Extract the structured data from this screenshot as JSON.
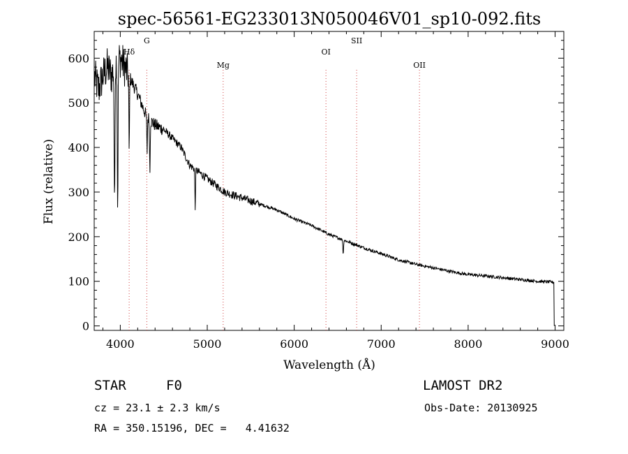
{
  "chart_data": {
    "type": "line",
    "title": "spec-56561-EG233013N050046V01_sp10-092.fits",
    "xlabel": "Wavelength (Å)",
    "ylabel": "Flux (relative)",
    "xlim": [
      3700,
      9100
    ],
    "ylim": [
      -10,
      660
    ],
    "xticks": [
      4000,
      5000,
      6000,
      7000,
      8000,
      9000
    ],
    "yticks": [
      0,
      100,
      200,
      300,
      400,
      500,
      600
    ],
    "line_markers": [
      {
        "label": "Hδ",
        "x": 4102
      },
      {
        "label": "G",
        "x": 4305
      },
      {
        "label": "Mg",
        "x": 5183
      },
      {
        "label": "OI",
        "x": 6365
      },
      {
        "label": "SII",
        "x": 6718
      },
      {
        "label": "OII",
        "x": 7440
      }
    ],
    "spectrum_anchors": [
      [
        3700,
        560
      ],
      [
        3750,
        530
      ],
      [
        3800,
        560
      ],
      [
        3850,
        580
      ],
      [
        3900,
        560
      ],
      [
        3950,
        590
      ],
      [
        4000,
        600
      ],
      [
        4050,
        580
      ],
      [
        4100,
        560
      ],
      [
        4150,
        540
      ],
      [
        4200,
        520
      ],
      [
        4300,
        470
      ],
      [
        4400,
        450
      ],
      [
        4500,
        440
      ],
      [
        4600,
        420
      ],
      [
        4700,
        400
      ],
      [
        4800,
        360
      ],
      [
        5000,
        330
      ],
      [
        5200,
        300
      ],
      [
        5500,
        280
      ],
      [
        5800,
        260
      ],
      [
        6000,
        240
      ],
      [
        6200,
        225
      ],
      [
        6400,
        205
      ],
      [
        6600,
        190
      ],
      [
        6800,
        175
      ],
      [
        7000,
        162
      ],
      [
        7200,
        148
      ],
      [
        7400,
        138
      ],
      [
        7600,
        130
      ],
      [
        7800,
        122
      ],
      [
        8000,
        115
      ],
      [
        8200,
        112
      ],
      [
        8400,
        108
      ],
      [
        8600,
        104
      ],
      [
        8800,
        100
      ],
      [
        8980,
        98
      ]
    ],
    "absorption_lines": [
      {
        "x": 3934,
        "depth": 330
      },
      {
        "x": 3970,
        "depth": 330
      },
      {
        "x": 4102,
        "depth": 180
      },
      {
        "x": 4308,
        "depth": 80
      },
      {
        "x": 4340,
        "depth": 120
      },
      {
        "x": 4861,
        "depth": 90
      },
      {
        "x": 6563,
        "depth": 35
      }
    ],
    "grid": false,
    "legend": "none"
  },
  "footer": {
    "object_type": "STAR",
    "subclass": "F0",
    "survey": "LAMOST DR2",
    "cz": "cz = 23.1 ± 2.3 km/s",
    "obs_date": "Obs-Date: 20130925",
    "coords": "RA = 350.15196, DEC =   4.41632"
  }
}
